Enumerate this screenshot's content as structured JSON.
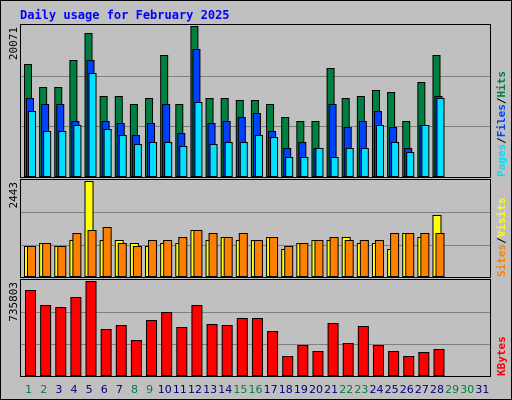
{
  "colors": {
    "background": "#c0c0c0",
    "title": "#0000ff",
    "hits": "#008040",
    "files": "#0040ff",
    "pages": "#00e0ff",
    "visits": "#ffff00",
    "sites": "#ff8000",
    "kbytes": "#ff0000",
    "weekend_label": "#008040",
    "weekday_label": "#000080"
  },
  "chart_data": [
    {
      "type": "bar",
      "title": "Daily usage for February 2025",
      "panel": "hits-files-pages",
      "ymax_label": "20071",
      "ylim": [
        0,
        20071
      ],
      "grid": true,
      "legend": [
        "Pages",
        "/",
        "Files",
        "/",
        "Hits"
      ],
      "categories": [
        "1",
        "2",
        "3",
        "4",
        "5",
        "6",
        "7",
        "8",
        "9",
        "10",
        "11",
        "12",
        "13",
        "14",
        "15",
        "16",
        "17",
        "18",
        "19",
        "20",
        "21",
        "22",
        "23",
        "24",
        "25",
        "26",
        "27",
        "28",
        "29",
        "30",
        "31"
      ],
      "weekend_days": [
        "1",
        "2",
        "8",
        "9",
        "15",
        "16",
        "22",
        "23",
        "29",
        "30"
      ],
      "series": [
        {
          "name": "Hits",
          "values": [
            15064,
            11982,
            11982,
            15613,
            19148,
            10747,
            10747,
            9649,
            10472,
            16164,
            9649,
            20071,
            10472,
            10472,
            10198,
            10198,
            9649,
            8002,
            7453,
            7453,
            14515,
            10472,
            10747,
            11570,
            11296,
            7453,
            12668,
            16242,
            0,
            0,
            0
          ]
        },
        {
          "name": "Files",
          "values": [
            10472,
            9649,
            9649,
            7453,
            15613,
            7453,
            7178,
            5531,
            7178,
            9649,
            5806,
            16987,
            7178,
            7453,
            8002,
            8551,
            6080,
            3816,
            4639,
            3816,
            9649,
            6629,
            7453,
            8825,
            6629,
            3816,
            6904,
            10747,
            0,
            0,
            0
          ]
        },
        {
          "name": "Pages",
          "values": [
            8825,
            6080,
            6080,
            6904,
            13825,
            6355,
            5531,
            4365,
            4639,
            4639,
            4090,
            9923,
            4365,
            4639,
            4639,
            5531,
            5257,
            2718,
            2718,
            3816,
            2718,
            3816,
            3816,
            6904,
            4639,
            3267,
            6904,
            10472,
            0,
            0,
            0
          ]
        }
      ]
    },
    {
      "type": "bar",
      "panel": "visits-sites",
      "ymax_label": "2443",
      "ylim": [
        0,
        2443
      ],
      "grid": true,
      "legend": [
        "Sites",
        "/",
        "Visits"
      ],
      "categories": [
        "1",
        "2",
        "3",
        "4",
        "5",
        "6",
        "7",
        "8",
        "9",
        "10",
        "11",
        "12",
        "13",
        "14",
        "15",
        "16",
        "17",
        "18",
        "19",
        "20",
        "21",
        "22",
        "23",
        "24",
        "25",
        "26",
        "27",
        "28",
        "29",
        "30",
        "31"
      ],
      "series": [
        {
          "name": "Visits",
          "values": [
            791,
            870,
            791,
            949,
            2443,
            949,
            949,
            870,
            791,
            870,
            870,
            1186,
            949,
            1028,
            949,
            949,
            1028,
            712,
            870,
            949,
            949,
            1028,
            870,
            870,
            712,
            1107,
            1028,
            1581,
            0,
            0,
            0
          ]
        },
        {
          "name": "Sites",
          "values": [
            791,
            870,
            791,
            1107,
            1186,
            1265,
            870,
            791,
            949,
            949,
            1028,
            1186,
            1107,
            1028,
            1107,
            949,
            1028,
            791,
            870,
            949,
            1028,
            949,
            949,
            949,
            1107,
            1107,
            1107,
            1107,
            0,
            0,
            0
          ]
        }
      ]
    },
    {
      "type": "bar",
      "panel": "kbytes",
      "ymax_label": "735803",
      "ylim": [
        0,
        735803
      ],
      "grid": true,
      "legend": [
        "KBytes"
      ],
      "categories": [
        "1",
        "2",
        "3",
        "4",
        "5",
        "6",
        "7",
        "8",
        "9",
        "10",
        "11",
        "12",
        "13",
        "14",
        "15",
        "16",
        "17",
        "18",
        "19",
        "20",
        "21",
        "22",
        "23",
        "24",
        "25",
        "26",
        "27",
        "28",
        "29",
        "30",
        "31"
      ],
      "series": [
        {
          "name": "KBytes",
          "values": [
            666000,
            547000,
            532000,
            614000,
            735803,
            365000,
            394000,
            276000,
            434000,
            493000,
            378000,
            547000,
            406000,
            398000,
            452000,
            452000,
            345000,
            152000,
            239000,
            197000,
            409000,
            257000,
            386000,
            239000,
            197000,
            152000,
            186000,
            212000,
            0,
            0,
            0
          ]
        }
      ]
    }
  ]
}
